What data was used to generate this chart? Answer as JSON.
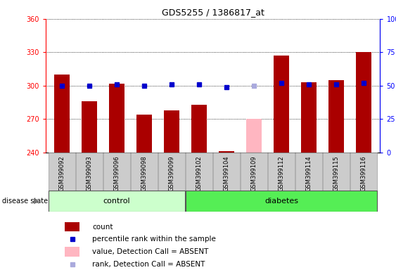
{
  "title": "GDS5255 / 1386817_at",
  "samples": [
    "GSM399092",
    "GSM399093",
    "GSM399096",
    "GSM399098",
    "GSM399099",
    "GSM399102",
    "GSM399104",
    "GSM399109",
    "GSM399112",
    "GSM399114",
    "GSM399115",
    "GSM399116"
  ],
  "count_values": [
    310,
    286,
    302,
    274,
    278,
    283,
    241,
    null,
    327,
    303,
    305,
    330
  ],
  "absent_count_values": [
    null,
    null,
    null,
    null,
    null,
    null,
    null,
    270,
    null,
    null,
    null,
    null
  ],
  "percentile_values": [
    50,
    50,
    51,
    50,
    51,
    51,
    49,
    null,
    52,
    51,
    51,
    52
  ],
  "absent_percentile_values": [
    null,
    null,
    null,
    null,
    null,
    null,
    null,
    50,
    null,
    null,
    null,
    null
  ],
  "ylim_left": [
    240,
    360
  ],
  "ylim_right": [
    0,
    100
  ],
  "yticks_left": [
    240,
    270,
    300,
    330,
    360
  ],
  "yticks_right": [
    0,
    25,
    50,
    75,
    100
  ],
  "ytick_labels_right": [
    "0",
    "25",
    "50",
    "75",
    "100%"
  ],
  "control_indices": [
    0,
    1,
    2,
    3,
    4
  ],
  "diabetes_indices": [
    5,
    6,
    7,
    8,
    9,
    10,
    11
  ],
  "bar_color_present": "#AA0000",
  "bar_color_absent": "#FFB6C1",
  "dot_color_present": "#0000CC",
  "dot_color_absent": "#AAAADD",
  "control_bg": "#CCFFCC",
  "diabetes_bg": "#55EE55",
  "sample_bg": "#CCCCCC",
  "base_value": 240,
  "bar_width": 0.55,
  "fig_width": 5.63,
  "fig_height": 3.84,
  "dpi": 100
}
